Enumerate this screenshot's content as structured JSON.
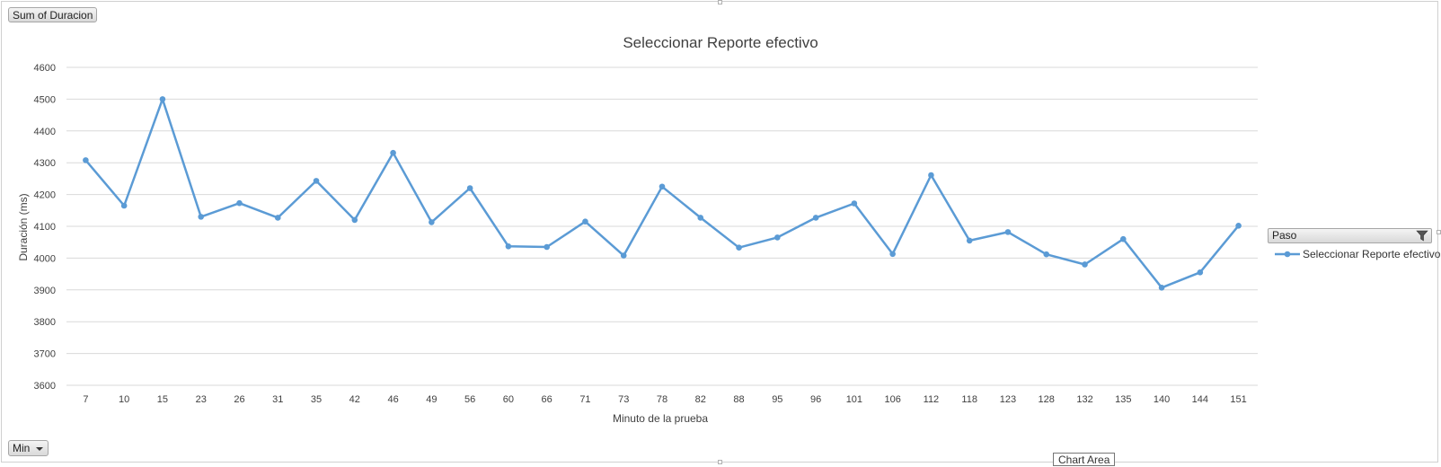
{
  "field_buttons": {
    "sum_label": "Sum of Duracion",
    "min_label": "Min",
    "legend_field_label": "Paso"
  },
  "tooltip": "Chart Area",
  "chart_data": {
    "type": "line",
    "title": "Seleccionar Reporte efectivo",
    "xlabel": "Minuto de la prueba",
    "ylabel": "Duración (ms)",
    "ylim": [
      3600,
      4600
    ],
    "yticks": [
      3600,
      3700,
      3800,
      3900,
      4000,
      4100,
      4200,
      4300,
      4400,
      4500,
      4600
    ],
    "grid": true,
    "legend_position": "right",
    "categories": [
      "7",
      "10",
      "15",
      "23",
      "26",
      "31",
      "35",
      "42",
      "46",
      "49",
      "56",
      "60",
      "66",
      "71",
      "73",
      "78",
      "82",
      "88",
      "95",
      "96",
      "101",
      "106",
      "112",
      "118",
      "123",
      "128",
      "132",
      "135",
      "140",
      "144",
      "151"
    ],
    "series": [
      {
        "name": "Seleccionar Reporte efectivo",
        "color": "#5B9BD5",
        "values": [
          4308,
          4165,
          4500,
          4130,
          4173,
          4127,
          4243,
          4120,
          4331,
          4113,
          4220,
          4037,
          4035,
          4115,
          4008,
          4225,
          4127,
          4033,
          4065,
          4127,
          4172,
          4013,
          4261,
          4055,
          4082,
          4012,
          3980,
          4060,
          3907,
          3955,
          4102
        ]
      }
    ]
  }
}
